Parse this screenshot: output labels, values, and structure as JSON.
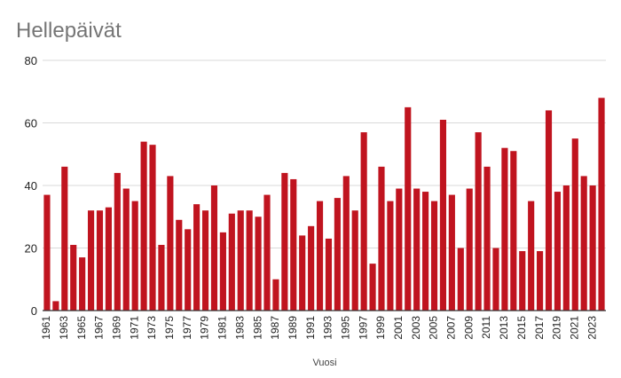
{
  "chart_data": {
    "type": "bar",
    "title": "Hellepäivät",
    "xlabel": "Vuosi",
    "ylabel": "",
    "ylim": [
      0,
      80
    ],
    "yticks": [
      0,
      20,
      40,
      60,
      80
    ],
    "grid": true,
    "bar_color": "#c0141f",
    "categories": [
      "1961",
      "1962",
      "1963",
      "1964",
      "1965",
      "1966",
      "1967",
      "1968",
      "1969",
      "1970",
      "1971",
      "1972",
      "1973",
      "1974",
      "1975",
      "1976",
      "1977",
      "1978",
      "1979",
      "1980",
      "1981",
      "1982",
      "1983",
      "1984",
      "1985",
      "1986",
      "1987",
      "1988",
      "1989",
      "1990",
      "1991",
      "1992",
      "1993",
      "1994",
      "1995",
      "1996",
      "1997",
      "1998",
      "1999",
      "2000",
      "2001",
      "2002",
      "2003",
      "2004",
      "2005",
      "2006",
      "2007",
      "2008",
      "2009",
      "2010",
      "2011",
      "2012",
      "2013",
      "2014",
      "2015",
      "2016",
      "2017",
      "2018",
      "2019",
      "2020",
      "2021",
      "2022",
      "2023",
      "2024"
    ],
    "tick_labels": [
      "1961",
      "1963",
      "1965",
      "1967",
      "1969",
      "1971",
      "1973",
      "1975",
      "1977",
      "1979",
      "1981",
      "1983",
      "1985",
      "1987",
      "1989",
      "1991",
      "1993",
      "1995",
      "1997",
      "1999",
      "2001",
      "2003",
      "2005",
      "2007",
      "2009",
      "2011",
      "2013",
      "2015",
      "2017",
      "2019",
      "2021",
      "2023"
    ],
    "values": [
      37,
      3,
      46,
      21,
      17,
      32,
      32,
      33,
      44,
      39,
      35,
      54,
      53,
      21,
      43,
      29,
      26,
      34,
      32,
      40,
      25,
      31,
      32,
      32,
      30,
      37,
      10,
      44,
      42,
      24,
      27,
      35,
      23,
      36,
      43,
      32,
      57,
      15,
      46,
      35,
      39,
      65,
      39,
      38,
      35,
      61,
      37,
      20,
      39,
      57,
      46,
      20,
      52,
      51,
      19,
      35,
      19,
      64,
      38,
      40,
      55,
      43,
      40,
      68
    ]
  }
}
